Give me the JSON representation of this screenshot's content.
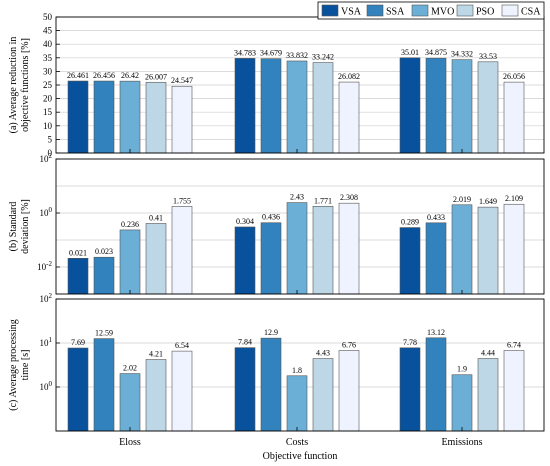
{
  "chart_data": [
    {
      "type": "bar",
      "ylabel": "(a) Average reduction in objective functions [%]",
      "ylabel_lines": [
        "(a) Average reduction in",
        "objective functions [%]"
      ],
      "categories": [
        "Eloss",
        "Costs",
        "Emissions"
      ],
      "ylim": [
        0,
        50
      ],
      "yscale": "linear",
      "yticks": [
        0,
        5,
        10,
        15,
        20,
        25,
        30,
        35,
        40,
        45,
        50
      ],
      "grid": true,
      "legend": "top-right",
      "series": [
        {
          "name": "VSA",
          "values": [
            26.461,
            34.783,
            35.01
          ]
        },
        {
          "name": "SSA",
          "values": [
            26.456,
            34.679,
            34.875
          ]
        },
        {
          "name": "MVO",
          "values": [
            26.42,
            33.832,
            34.332
          ]
        },
        {
          "name": "PSO",
          "values": [
            26.007,
            33.242,
            33.53
          ]
        },
        {
          "name": "CSA",
          "values": [
            24.547,
            26.082,
            26.056
          ]
        }
      ],
      "labels": [
        [
          "26.461",
          "34.783",
          "35.01"
        ],
        [
          "26.456",
          "34.679",
          "34.875"
        ],
        [
          "26.42",
          "33.832",
          "34.332"
        ],
        [
          "26.007",
          "33.242",
          "33.53"
        ],
        [
          "24.547",
          "26.082",
          "26.056"
        ]
      ]
    },
    {
      "type": "bar",
      "ylabel": "(b) Standard deviation [%]",
      "ylabel_lines": [
        "(b) Standard",
        "deviation [%]"
      ],
      "categories": [
        "Eloss",
        "Costs",
        "Emissions"
      ],
      "ylim": [
        0.001,
        100
      ],
      "yscale": "log",
      "yticks_exp": [
        -2,
        0,
        2
      ],
      "grid": true,
      "series": [
        {
          "name": "VSA",
          "values": [
            0.021,
            0.304,
            0.289
          ]
        },
        {
          "name": "SSA",
          "values": [
            0.023,
            0.436,
            0.433
          ]
        },
        {
          "name": "MVO",
          "values": [
            0.236,
            2.43,
            2.019
          ]
        },
        {
          "name": "PSO",
          "values": [
            0.41,
            1.771,
            1.649
          ]
        },
        {
          "name": "CSA",
          "values": [
            1.755,
            2.308,
            2.109
          ]
        }
      ],
      "labels": [
        [
          "0.021",
          "0.304",
          "0.289"
        ],
        [
          "0.023",
          "0.436",
          "0.433"
        ],
        [
          "0.236",
          "2.43",
          "2.019"
        ],
        [
          "0.41",
          "1.771",
          "1.649"
        ],
        [
          "1.755",
          "2.308",
          "2.109"
        ]
      ]
    },
    {
      "type": "bar",
      "ylabel": "(c) Average processing time [s]",
      "ylabel_lines": [
        "(c) Average processing",
        "time [s]"
      ],
      "xlabel": "Objective function",
      "categories": [
        "Eloss",
        "Costs",
        "Emissions"
      ],
      "ylim": [
        0.1,
        100
      ],
      "yscale": "log",
      "yticks_exp": [
        0,
        1,
        2
      ],
      "grid": true,
      "series": [
        {
          "name": "VSA",
          "values": [
            7.69,
            7.84,
            7.78
          ]
        },
        {
          "name": "SSA",
          "values": [
            12.59,
            12.9,
            13.12
          ]
        },
        {
          "name": "MVO",
          "values": [
            2.02,
            1.8,
            1.9
          ]
        },
        {
          "name": "PSO",
          "values": [
            4.21,
            4.43,
            4.44
          ]
        },
        {
          "name": "CSA",
          "values": [
            6.54,
            6.76,
            6.74
          ]
        }
      ],
      "labels": [
        [
          "7.69",
          "7.84",
          "7.78"
        ],
        [
          "12.59",
          "12.9",
          "13.12"
        ],
        [
          "2.02",
          "1.8",
          "1.9"
        ],
        [
          "4.21",
          "4.43",
          "4.44"
        ],
        [
          "6.54",
          "6.76",
          "6.74"
        ]
      ]
    }
  ],
  "colors": [
    "#08519c",
    "#3182bd",
    "#6baed6",
    "#bdd7e7",
    "#eff3ff"
  ]
}
